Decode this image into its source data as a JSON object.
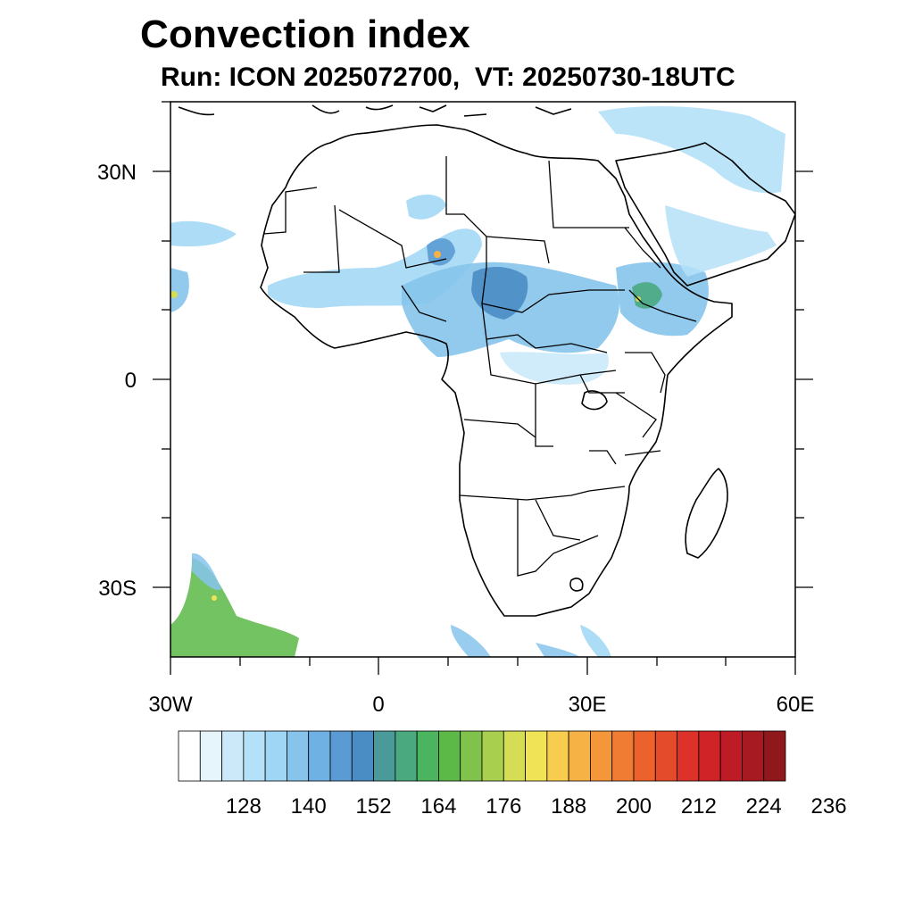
{
  "title": "Convection index",
  "subtitle": "Run: ICON 2025072700,  VT: 20250730-18UTC",
  "axes": {
    "lon_range": [
      -30,
      60
    ],
    "lat_range": [
      -40,
      40
    ],
    "x_tick_labels": [
      "30W",
      "0",
      "30E",
      "60E"
    ],
    "y_tick_labels": [
      "30N",
      "0",
      "30S"
    ]
  },
  "colorbar": {
    "labels": [
      "128",
      "140",
      "152",
      "164",
      "176",
      "188",
      "200",
      "212",
      "224",
      "236"
    ],
    "colors": [
      "#ffffff",
      "#e6f4fc",
      "#cbe9f8",
      "#b5e1f8",
      "#9fd6f5",
      "#86c4ec",
      "#6fb1e3",
      "#5a9bd4",
      "#4a8cc4",
      "#4a9a9a",
      "#4aa97f",
      "#4bb45e",
      "#5cb948",
      "#7fc24c",
      "#a9cf4f",
      "#d5dd55",
      "#f1e356",
      "#f8cd4f",
      "#f6b244",
      "#f4963a",
      "#f07c33",
      "#ec622d",
      "#e44b2b",
      "#dc3229",
      "#cf2327",
      "#bd1b25",
      "#a81a22",
      "#8f181d"
    ]
  }
}
